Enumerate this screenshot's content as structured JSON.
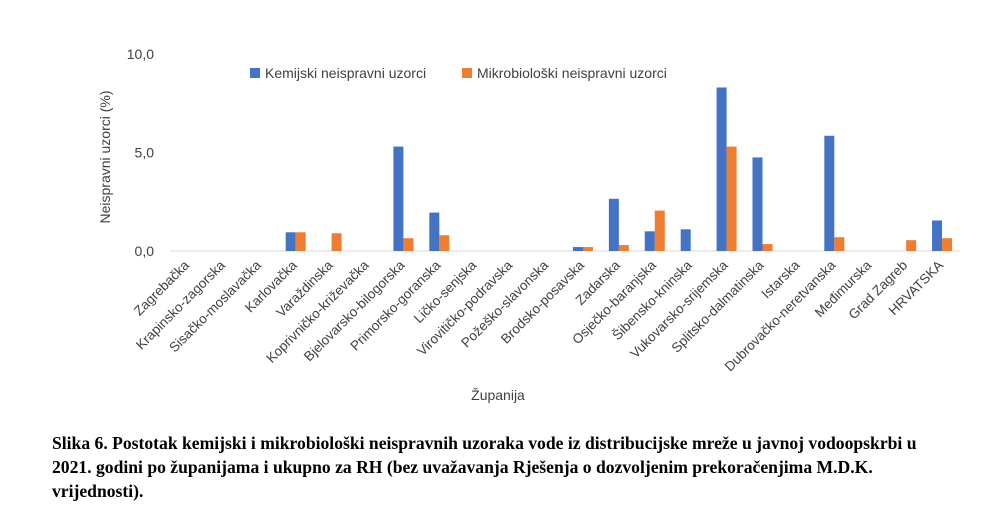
{
  "chart_data": {
    "type": "bar",
    "categories": [
      "Zagrebačka",
      "Krapinsko-zagorska",
      "Sisačko-moslavačka",
      "Karlovačka",
      "Varaždinska",
      "Koprivničko-križevačka",
      "Bjelovarsko-bilogorska",
      "Primorsko-goranska",
      "Ličko-senjska",
      "Virovitičko-podravska",
      "Požeško-slavonska",
      "Brodsko-posavska",
      "Zadarska",
      "Osječko-baranjska",
      "Šibensko-kninska",
      "Vukovarsko-srijemska",
      "Splitsko-dalmatinska",
      "Istarska",
      "Dubrovačko-neretvanska",
      "Međimurska",
      "Grad Zagreb",
      "HRVATSKA"
    ],
    "series": [
      {
        "name": "Kemijski neispravni uzorci",
        "color": "#4472C4",
        "values": [
          0,
          0,
          0,
          0.95,
          0,
          0,
          5.3,
          1.95,
          0,
          0,
          0,
          0.2,
          2.65,
          1.0,
          1.1,
          8.3,
          4.75,
          0,
          5.85,
          0,
          0,
          1.55
        ]
      },
      {
        "name": "Mikrobiološki neispravni uzorci",
        "color": "#ED7D31",
        "values": [
          0,
          0,
          0,
          0.95,
          0.9,
          0,
          0.65,
          0.8,
          0,
          0,
          0,
          0.2,
          0.3,
          2.05,
          0,
          5.3,
          0.35,
          0,
          0.7,
          0,
          0.55,
          0.65
        ]
      }
    ],
    "yticks": [
      "0,0",
      "5,0",
      "10,0"
    ],
    "ylim": [
      0,
      10
    ],
    "xlabel": "Županija",
    "ylabel": "Neispravni uzorci (%)",
    "grid": false,
    "legend": "top-center"
  },
  "caption": "Slika 6. Postotak kemijski i mikrobiološki neispravnih uzoraka vode iz distribucijske mreže u javnoj vodoopskrbi u 2021. godini po županijama i ukupno za RH (bez uvažavanja Rješenja o dozvoljenim prekoračenjima M.D.K. vrijednosti)."
}
